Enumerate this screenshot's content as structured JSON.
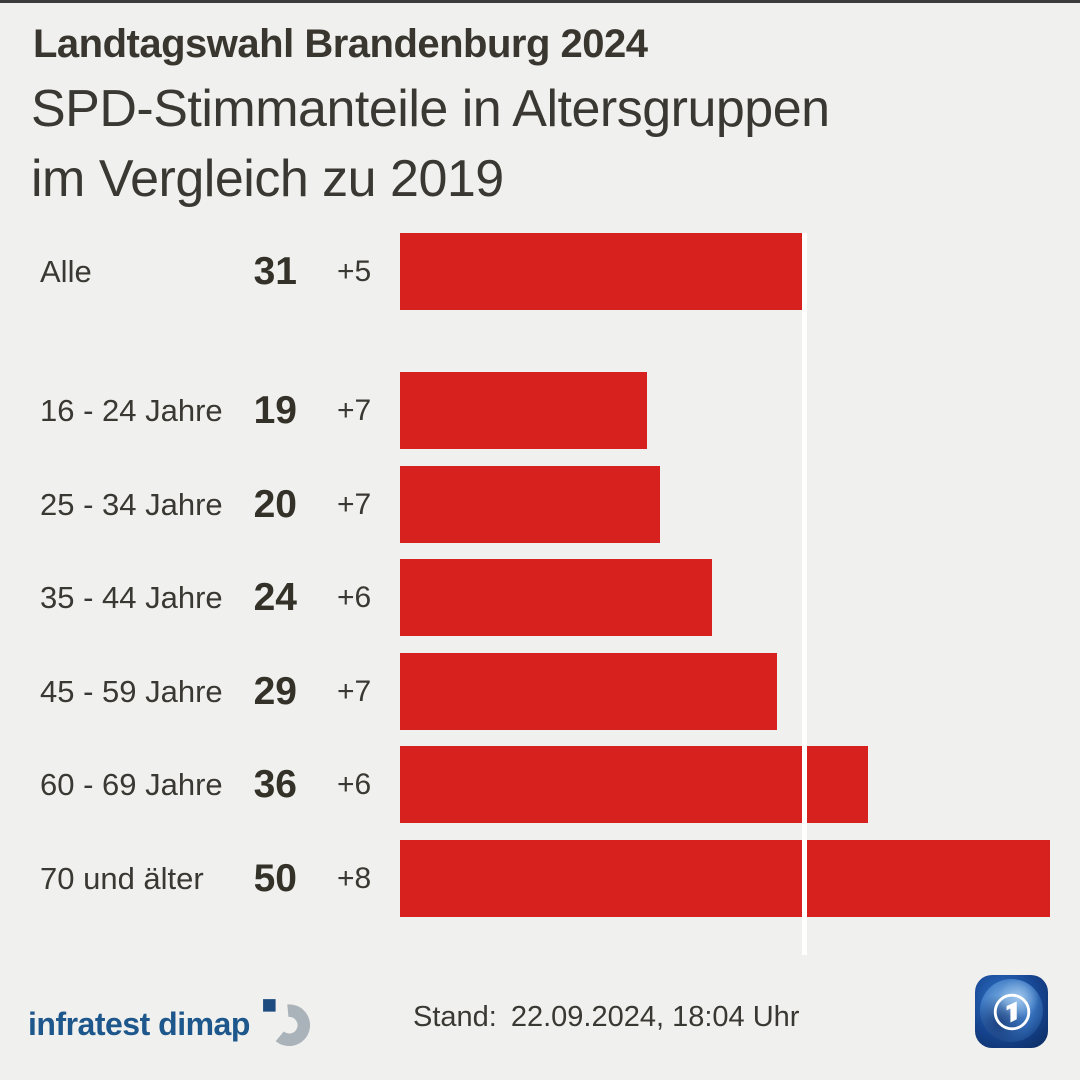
{
  "header": {
    "kicker": "Landtagswahl Brandenburg 2024",
    "title_line1": "SPD-Stimmanteile in Altersgruppen",
    "title_line2": "im Vergleich zu 2019"
  },
  "chart_data": {
    "type": "bar",
    "orientation": "horizontal",
    "title": "SPD-Stimmanteile in Altersgruppen im Vergleich zu 2019",
    "categories": [
      "Alle",
      "16 - 24 Jahre",
      "25 - 34 Jahre",
      "35 - 44 Jahre",
      "45 - 59 Jahre",
      "60 - 69 Jahre",
      "70 und älter"
    ],
    "values": [
      31,
      19,
      20,
      24,
      29,
      36,
      50
    ],
    "changes": [
      "+5",
      "+7",
      "+7",
      "+6",
      "+7",
      "+6",
      "+8"
    ],
    "reference_value": 31,
    "reference_category": "Alle",
    "xlim": [
      0,
      52
    ],
    "grid": false,
    "legend": false,
    "bar_color": "#d7211e",
    "reference_line_color": "#ffffff"
  },
  "footer": {
    "source_logo_text": "infratest dimap",
    "stand_label": "Stand:",
    "stand_value": "22.09.2024, 18:04 Uhr"
  },
  "icons": {
    "infratest_mark": "infratest-dimap-mark",
    "ard_logo": "ard-das-erste-globe-one"
  },
  "colors": {
    "background": "#f0f0ee",
    "text": "#3a3832",
    "bar_red": "#d7211e",
    "reference_line": "#ffffff",
    "infratest_blue": "#1e578c",
    "infratest_gray": "#aab2ba",
    "ard_navy": "#0a2a5e"
  }
}
